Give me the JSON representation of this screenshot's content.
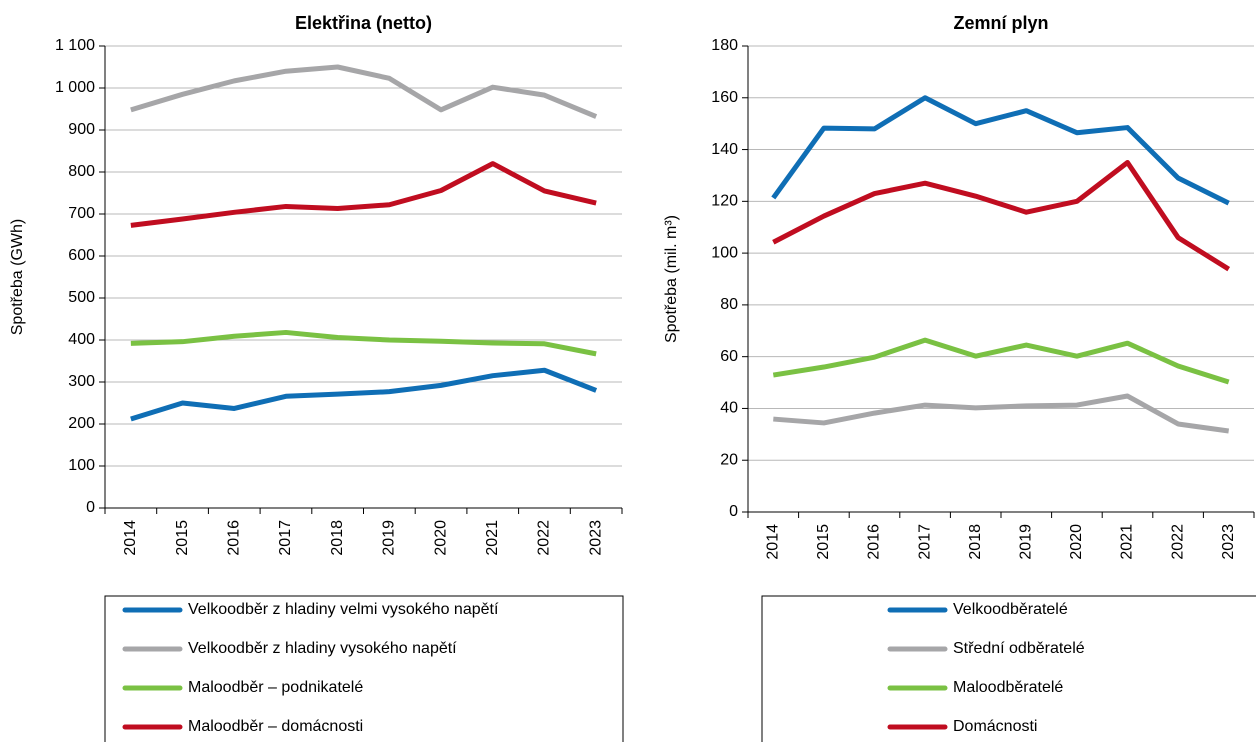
{
  "chart_data": [
    {
      "type": "line",
      "title": "Elektřina (netto)",
      "y_label": "Spotřeba (GWh)",
      "categories": [
        "2014",
        "2015",
        "2016",
        "2017",
        "2018",
        "2019",
        "2020",
        "2021",
        "2022",
        "2023"
      ],
      "ylim": [
        0,
        1100
      ],
      "yticks": [
        0,
        100,
        200,
        300,
        400,
        500,
        600,
        700,
        800,
        900,
        {
          "value": 1000,
          "label": "1 000"
        },
        {
          "value": 1100,
          "label": "1 100"
        }
      ],
      "grid": true,
      "series": [
        {
          "name": "Velkoodběr z hladiny velmi vysokého napětí",
          "color": "#0f6eb5",
          "values": [
            212,
            250,
            237,
            266,
            271,
            277,
            292,
            315,
            328,
            280
          ]
        },
        {
          "name": "Velkoodběr z hladiny vysokého napětí",
          "color": "#a6a6a8",
          "values": [
            948,
            985,
            1017,
            1040,
            1050,
            1023,
            948,
            1002,
            983,
            932
          ]
        },
        {
          "name": "Maloodběr – podnikatelé",
          "color": "#7ac143",
          "values": [
            392,
            396,
            409,
            418,
            406,
            400,
            397,
            393,
            391,
            367
          ]
        },
        {
          "name": "Maloodběr – domácnosti",
          "color": "#c00d20",
          "values": [
            673,
            688,
            704,
            718,
            713,
            722,
            756,
            820,
            755,
            726
          ]
        }
      ]
    },
    {
      "type": "line",
      "title": "Zemní plyn",
      "y_label": "Spotřeba (mil. m³)",
      "categories": [
        "2014",
        "2015",
        "2016",
        "2017",
        "2018",
        "2019",
        "2020",
        "2021",
        "2022",
        "2023"
      ],
      "ylim": [
        0,
        180
      ],
      "yticks": [
        0,
        20,
        40,
        60,
        80,
        100,
        120,
        140,
        160,
        180
      ],
      "grid": true,
      "series": [
        {
          "name": "Velkoodběratelé",
          "color": "#0f6eb5",
          "values": [
            121.3,
            148.3,
            148,
            160,
            150,
            155,
            146.5,
            148.5,
            129,
            119.3
          ]
        },
        {
          "name": "Střední odběratelé",
          "color": "#a6a6a8",
          "values": [
            35.9,
            34.4,
            38.2,
            41.3,
            40.2,
            41,
            41.3,
            44.8,
            34,
            31.3
          ]
        },
        {
          "name": "Maloodběratelé",
          "color": "#7ac143",
          "values": [
            52.9,
            56,
            59.8,
            66.4,
            60.2,
            64.5,
            60.2,
            65.2,
            56.4,
            50.2
          ]
        },
        {
          "name": "Domácnosti",
          "color": "#c00d20",
          "values": [
            104.2,
            114.3,
            123,
            127,
            122,
            115.8,
            120,
            135,
            106,
            93.8
          ]
        }
      ]
    }
  ]
}
